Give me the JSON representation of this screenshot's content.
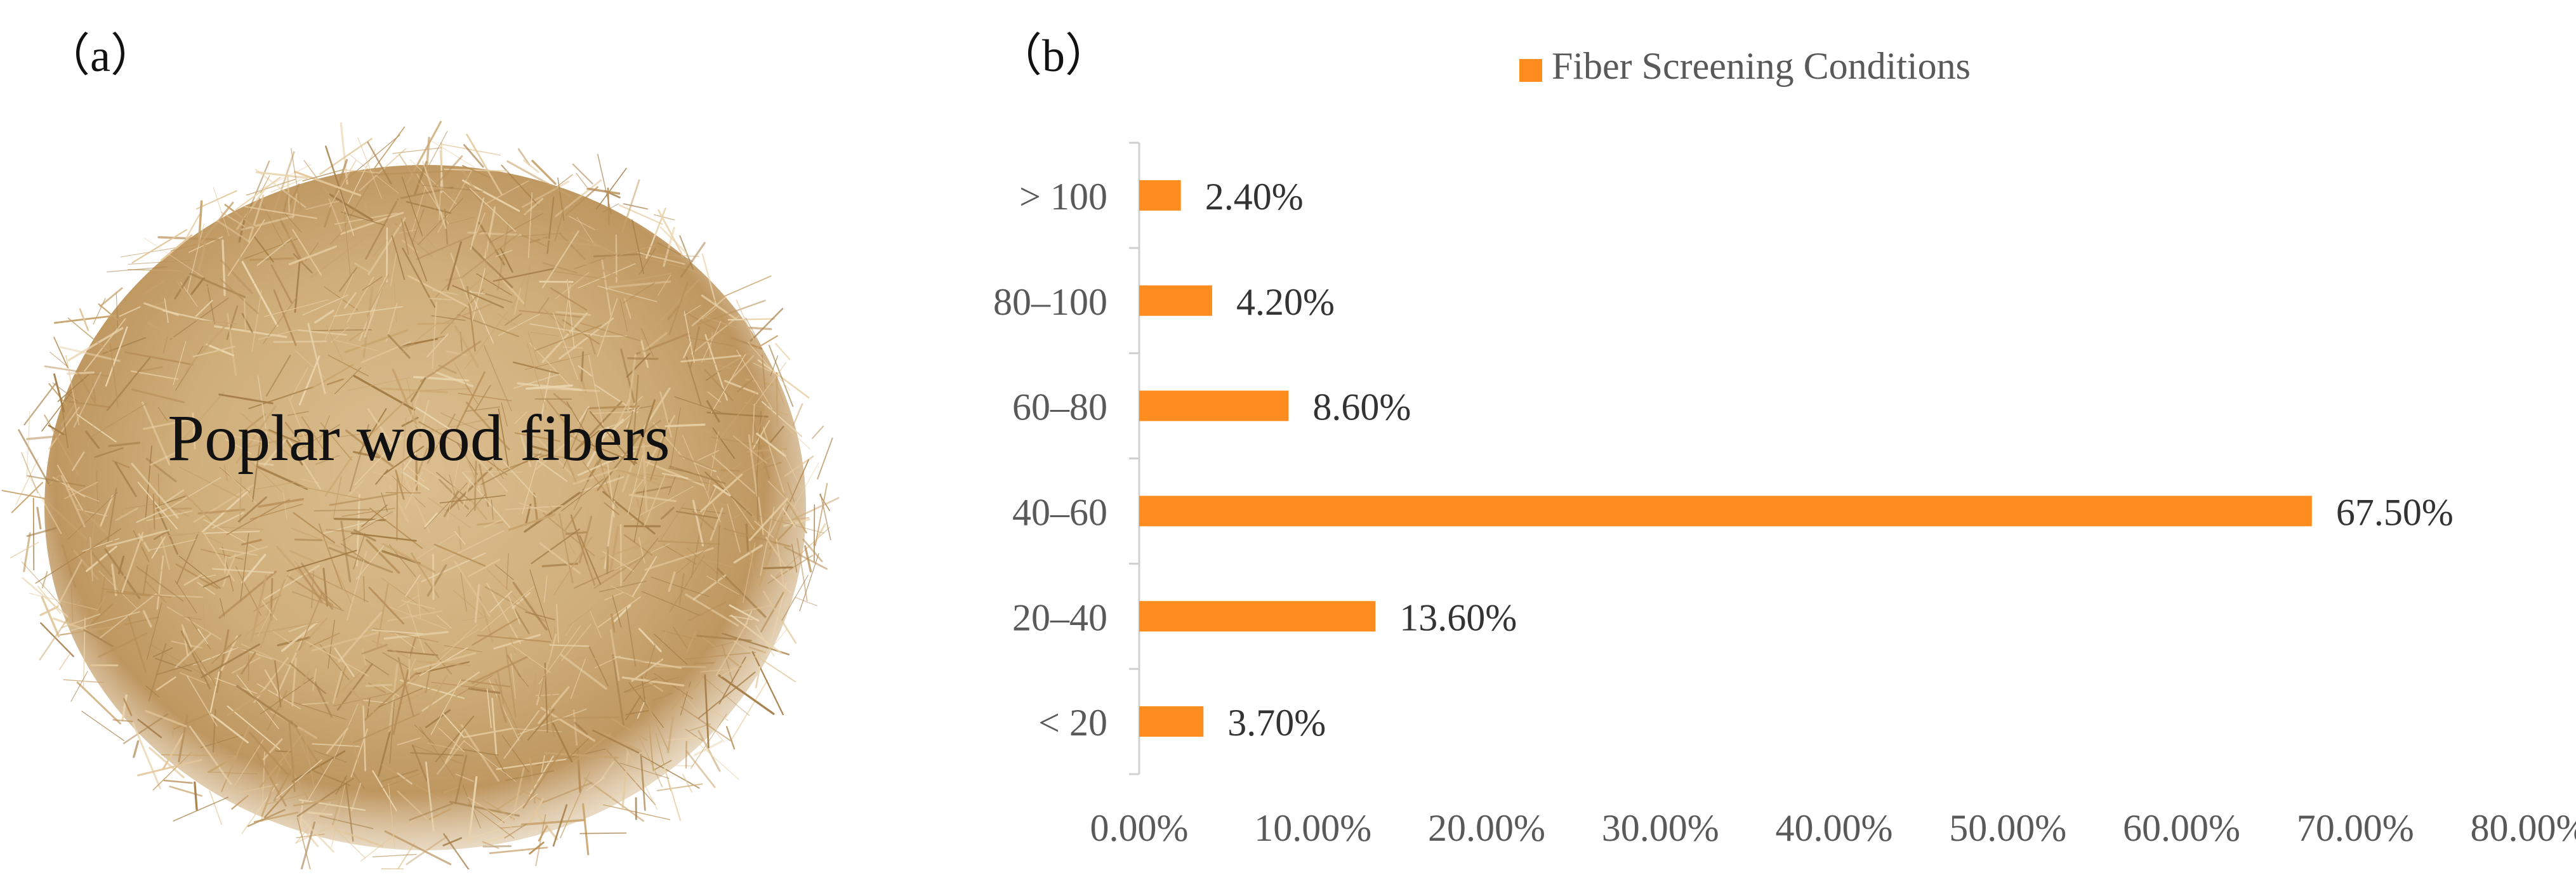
{
  "panels": {
    "a_label": "（a）",
    "b_label": "（b）"
  },
  "photo": {
    "caption": "Poplar wood fibers"
  },
  "colors": {
    "bar": "#FF8C1F",
    "fiber_light": "#E3C79A",
    "fiber_mid": "#C9A46E",
    "fiber_dark": "#A57E48",
    "axis": "#D0D0D0",
    "tick_text": "#595959"
  },
  "chart_data": {
    "type": "bar",
    "orientation": "horizontal",
    "categories": [
      "> 100",
      "80–100",
      "60–80",
      "40–60",
      "20–40",
      "< 20"
    ],
    "series": [
      {
        "name": "Fiber Screening Conditions",
        "values": [
          2.4,
          4.2,
          8.6,
          67.5,
          13.6,
          3.7
        ],
        "data_labels": [
          "2.40%",
          "4.20%",
          "8.60%",
          "67.50%",
          "13.60%",
          "3.70%"
        ]
      }
    ],
    "xlim": [
      0,
      80
    ],
    "x_ticks": [
      "0.00%",
      "10.00%",
      "20.00%",
      "30.00%",
      "40.00%",
      "50.00%",
      "60.00%",
      "70.00%",
      "80.00%"
    ],
    "legend": "top",
    "grid": false
  }
}
